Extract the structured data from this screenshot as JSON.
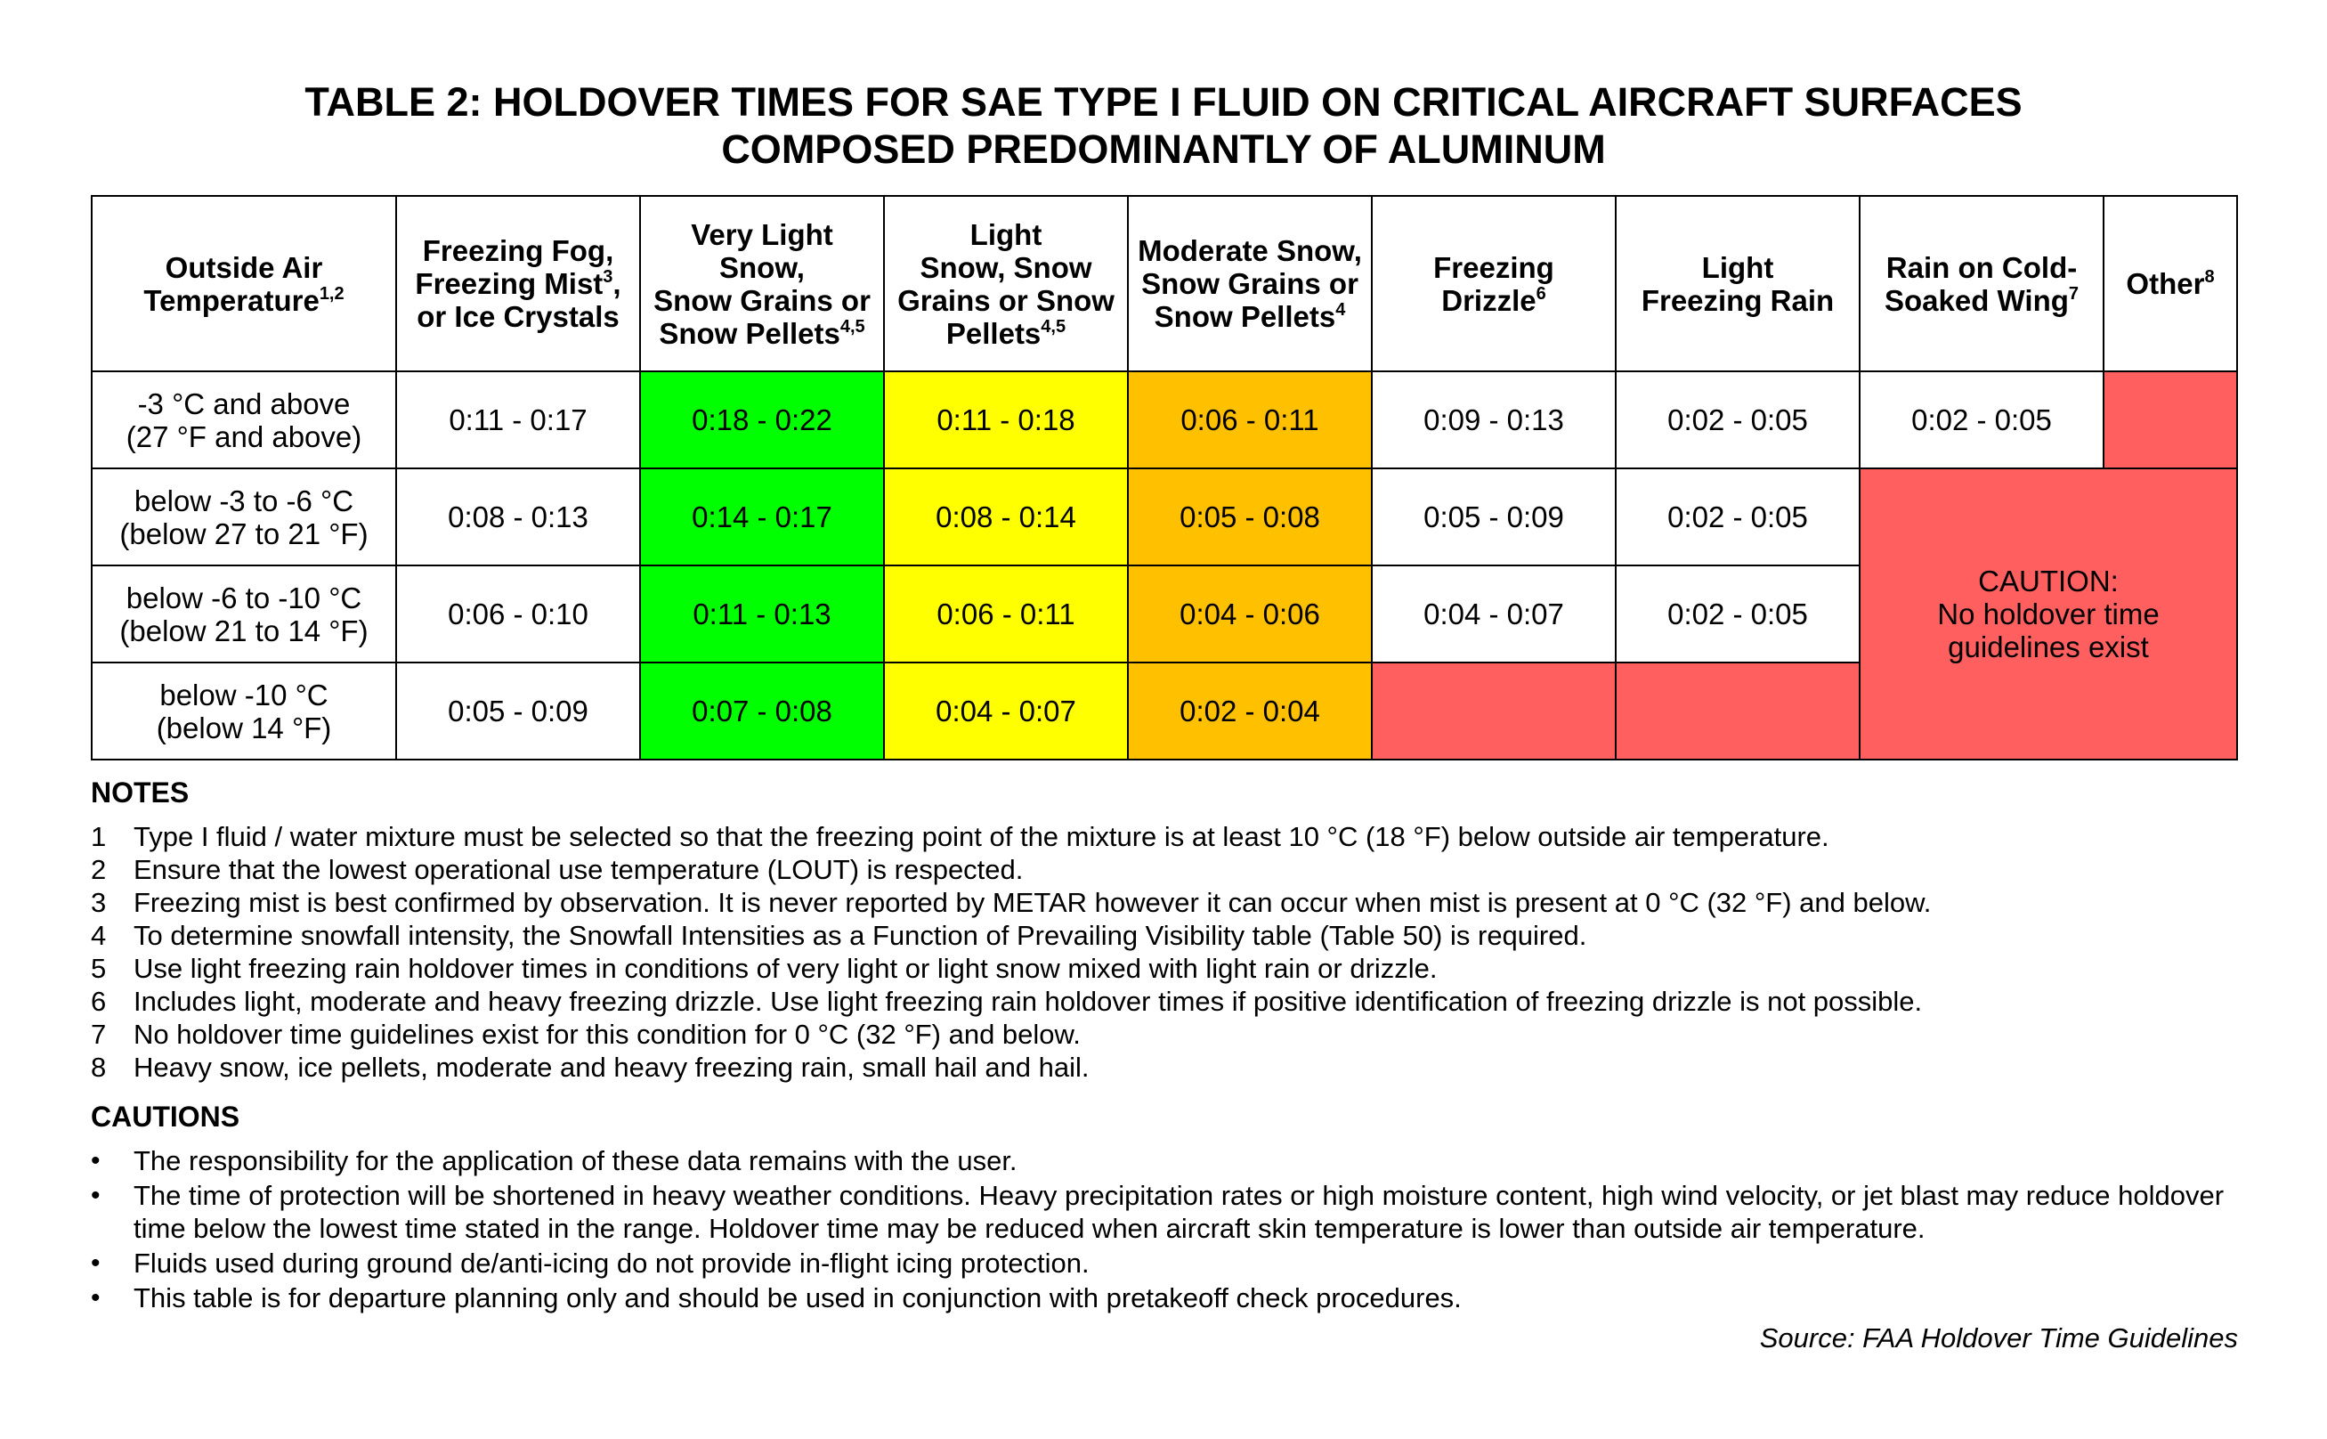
{
  "title": {
    "line1": "TABLE 2: HOLDOVER TIMES FOR SAE TYPE I FLUID ON CRITICAL AIRCRAFT SURFACES",
    "line2": "COMPOSED PREDOMINANTLY OF ALUMINUM"
  },
  "headers": [
    {
      "l1": "Outside Air",
      "l2": "Temperature",
      "sup2": "1,2"
    },
    {
      "l1": "Freezing Fog,",
      "l2": "Freezing Mist",
      "sup2": "3",
      "l2b": ",",
      "l3": "or Ice Crystals"
    },
    {
      "l1": "Very Light Snow,",
      "l2": "Snow Grains or",
      "l3": "Snow Pellets",
      "sup3": "4,5"
    },
    {
      "l1": "Light",
      "l2": "Snow, Snow",
      "l3": "Grains or Snow",
      "l4": "Pellets",
      "sup4": "4,5"
    },
    {
      "l1": "Moderate Snow,",
      "l2": "Snow Grains or",
      "l3": "Snow Pellets",
      "sup3": "4"
    },
    {
      "l1": "Freezing",
      "l2": "Drizzle",
      "sup2": "6"
    },
    {
      "l1": "Light",
      "l2": "Freezing Rain"
    },
    {
      "l1": "Rain on Cold-",
      "l2": "Soaked Wing",
      "sup2": "7"
    },
    {
      "l1": "Other",
      "sup1": "8"
    }
  ],
  "rows": [
    {
      "temp1": "-3 °C and above",
      "temp2": "(27 °F and above)",
      "fog": "0:11 - 0:17",
      "vls": "0:18 - 0:22",
      "ls": "0:11 - 0:18",
      "ms": "0:06 - 0:11",
      "fd": "0:09 - 0:13",
      "lfr": "0:02 - 0:05",
      "rcsw": "0:02 - 0:05"
    },
    {
      "temp1": "below -3 to -6 °C",
      "temp2": "(below 27 to 21 °F)",
      "fog": "0:08 - 0:13",
      "vls": "0:14 - 0:17",
      "ls": "0:08 - 0:14",
      "ms": "0:05 - 0:08",
      "fd": "0:05 - 0:09",
      "lfr": "0:02 - 0:05"
    },
    {
      "temp1": "below -6 to -10 °C",
      "temp2": "(below 21 to 14 °F)",
      "fog": "0:06 - 0:10",
      "vls": "0:11 - 0:13",
      "ls": "0:06 - 0:11",
      "ms": "0:04 - 0:06",
      "fd": "0:04 - 0:07",
      "lfr": "0:02 - 0:05"
    },
    {
      "temp1": "below -10 °C",
      "temp2": "(below 14 °F)",
      "fog": "0:05 - 0:09",
      "vls": "0:07 - 0:08",
      "ls": "0:04 - 0:07",
      "ms": "0:02 - 0:04"
    }
  ],
  "caution_cell": {
    "l1": "CAUTION:",
    "l2": "No holdover time",
    "l3": "guidelines exist"
  },
  "notes": {
    "heading": "NOTES",
    "items": [
      {
        "num": "1",
        "text": "Type I fluid / water mixture must be selected so that the freezing point of the mixture is at least 10 °C (18 °F) below outside air temperature."
      },
      {
        "num": "2",
        "text": "Ensure that the lowest operational use temperature (LOUT) is respected."
      },
      {
        "num": "3",
        "text": "Freezing mist is best confirmed by observation. It is never reported by METAR however it can occur when mist is present at 0 °C (32 °F) and below."
      },
      {
        "num": "4",
        "text": "To determine snowfall intensity, the Snowfall Intensities as a Function of Prevailing Visibility table (Table 50) is required."
      },
      {
        "num": "5",
        "text": "Use light freezing rain holdover times in conditions of very light or light snow mixed with light rain or drizzle."
      },
      {
        "num": "6",
        "text": "Includes light, moderate and heavy freezing drizzle. Use light freezing rain holdover times if positive identification of freezing drizzle is not possible."
      },
      {
        "num": "7",
        "text": "No holdover time guidelines exist for this condition for 0 °C (32 °F) and below."
      },
      {
        "num": "8",
        "text": "Heavy snow, ice pellets, moderate and heavy freezing rain, small hail and hail."
      }
    ]
  },
  "cautions": {
    "heading": "CAUTIONS",
    "bullet": "•",
    "items": [
      {
        "text": "The responsibility for the application of these data remains with the user."
      },
      {
        "text": "The time of protection will be shortened in heavy weather conditions. Heavy precipitation rates or high moisture content, high wind velocity, or jet blast may reduce holdover time below the lowest time stated in the range. Holdover time may be reduced when aircraft skin temperature is lower than outside air temperature."
      },
      {
        "text": "Fluids used during ground de/anti-icing do not provide in-flight icing protection."
      },
      {
        "text": "This table is for departure planning only and should be used in conjunction with pretakeoff check procedures."
      }
    ]
  },
  "source": "Source: FAA Holdover Time Guidelines",
  "colors": {
    "very_light_snow": "#00ff00",
    "light_snow": "#ffff00",
    "moderate_snow": "#ffc000",
    "no_guidelines": "#ff5f5f"
  }
}
